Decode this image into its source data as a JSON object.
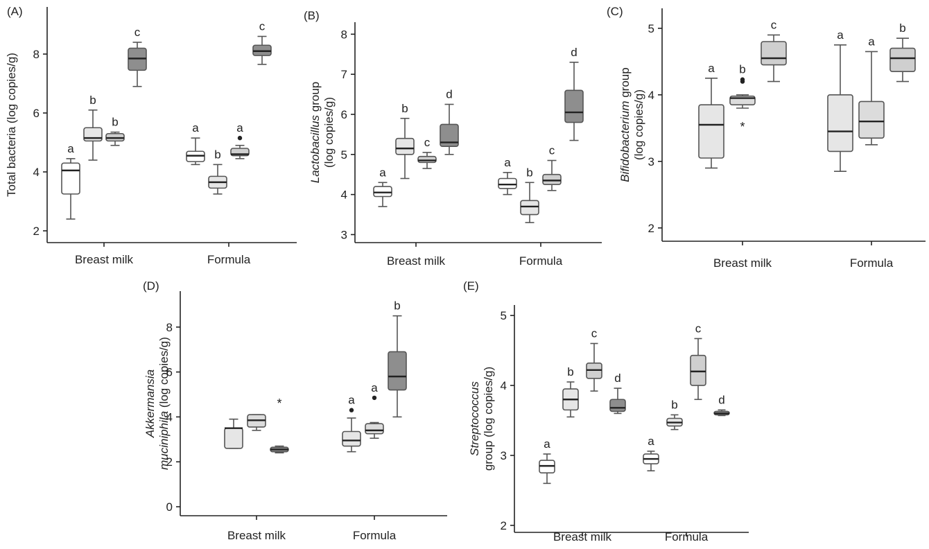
{
  "chart_data": [
    {
      "type": "box",
      "panel_label": "(A)",
      "ylabel": "Total bacteria  (log copies/g)",
      "ylabel_lines": [
        [
          {
            "text": "Total bacteria  (log copies/g)",
            "italic": false
          }
        ]
      ],
      "ylim": [
        1.6,
        9.6
      ],
      "yticks": [
        2,
        4,
        6,
        8
      ],
      "categories": [
        "Breast milk",
        "Formula"
      ],
      "box_colors": [
        "#ffffff",
        "#e6e6e6",
        "#cfcfcf",
        "#8e8e8e"
      ],
      "groups": [
        [
          {
            "min": 2.4,
            "q1": 3.25,
            "median": 4.05,
            "q3": 4.3,
            "max": 4.45,
            "letter": "a"
          },
          {
            "min": 4.4,
            "q1": 5.05,
            "median": 5.15,
            "q3": 5.5,
            "max": 6.1,
            "letter": "b"
          },
          {
            "min": 4.9,
            "q1": 5.05,
            "median": 5.15,
            "q3": 5.3,
            "max": 5.35,
            "letter": "b"
          },
          {
            "min": 6.9,
            "q1": 7.45,
            "median": 7.85,
            "q3": 8.2,
            "max": 8.4,
            "letter": "c"
          }
        ],
        [
          {
            "min": 4.25,
            "q1": 4.35,
            "median": 4.55,
            "q3": 4.7,
            "max": 5.15,
            "letter": "a"
          },
          {
            "min": 3.25,
            "q1": 3.45,
            "median": 3.65,
            "q3": 3.85,
            "max": 4.25,
            "letter": "b"
          },
          {
            "min": 4.45,
            "q1": 4.55,
            "median": 4.6,
            "q3": 4.8,
            "max": 4.9,
            "letter": "a",
            "outliers": [
              {
                "value": 5.15,
                "symbol": "dot"
              }
            ]
          },
          {
            "min": 7.65,
            "q1": 7.95,
            "median": 8.1,
            "q3": 8.3,
            "max": 8.6,
            "letter": "c"
          }
        ]
      ]
    },
    {
      "type": "box",
      "panel_label": "(B)",
      "ylabel": "Lactobacillus group (log copies/g)",
      "ylabel_lines": [
        [
          {
            "text": "Lactobacillus",
            "italic": true
          },
          {
            "text": " group",
            "italic": false
          }
        ],
        [
          {
            "text": "(log copies/g)",
            "italic": false
          }
        ]
      ],
      "ylim": [
        2.8,
        8.3
      ],
      "yticks": [
        3,
        4,
        5,
        6,
        7,
        8
      ],
      "categories": [
        "Breast milk",
        "Formula"
      ],
      "box_colors": [
        "#ffffff",
        "#e6e6e6",
        "#cfcfcf",
        "#8e8e8e"
      ],
      "groups": [
        [
          {
            "min": 3.7,
            "q1": 3.95,
            "median": 4.05,
            "q3": 4.2,
            "max": 4.3,
            "letter": "a"
          },
          {
            "min": 4.4,
            "q1": 5.0,
            "median": 5.15,
            "q3": 5.4,
            "max": 5.9,
            "letter": "b"
          },
          {
            "min": 4.65,
            "q1": 4.8,
            "median": 4.85,
            "q3": 4.95,
            "max": 5.05,
            "letter": "c"
          },
          {
            "min": 5.0,
            "q1": 5.2,
            "median": 5.3,
            "q3": 5.75,
            "max": 6.25,
            "letter": "d"
          }
        ],
        [
          {
            "min": 4.0,
            "q1": 4.15,
            "median": 4.25,
            "q3": 4.4,
            "max": 4.55,
            "letter": "a"
          },
          {
            "min": 3.3,
            "q1": 3.5,
            "median": 3.7,
            "q3": 3.85,
            "max": 4.3,
            "letter": "b"
          },
          {
            "min": 4.1,
            "q1": 4.25,
            "median": 4.35,
            "q3": 4.5,
            "max": 4.85,
            "letter": "c"
          },
          {
            "min": 5.35,
            "q1": 5.8,
            "median": 6.05,
            "q3": 6.6,
            "max": 7.3,
            "letter": "d"
          }
        ]
      ]
    },
    {
      "type": "box",
      "panel_label": "(C)",
      "ylabel": "Bifidobacterium group (log copies/g)",
      "ylabel_lines": [
        [
          {
            "text": "Bifidobacterium",
            "italic": true
          },
          {
            "text": " group",
            "italic": false
          }
        ],
        [
          {
            "text": "(log copies/g)",
            "italic": false
          }
        ]
      ],
      "ylim": [
        1.8,
        5.3
      ],
      "yticks": [
        2,
        3,
        4,
        5
      ],
      "categories": [
        "Breast milk",
        "Formula"
      ],
      "box_colors": [
        "#e6e6e6",
        "#dcdcdc",
        "#cfcfcf",
        "#8e8e8e"
      ],
      "groups": [
        [
          {
            "min": 2.9,
            "q1": 3.05,
            "median": 3.55,
            "q3": 3.85,
            "max": 4.25,
            "letter": "a"
          },
          {
            "min": 3.8,
            "q1": 3.85,
            "median": 3.95,
            "q3": 3.98,
            "max": 4.0,
            "letter": "b",
            "outliers": [
              {
                "value": 4.2,
                "symbol": "dot"
              },
              {
                "value": 4.23,
                "symbol": "dot"
              },
              {
                "value": 3.55,
                "symbol": "star"
              }
            ]
          },
          {
            "min": 4.2,
            "q1": 4.45,
            "median": 4.55,
            "q3": 4.8,
            "max": 4.9,
            "letter": "c"
          }
        ],
        [
          {
            "min": 2.85,
            "q1": 3.15,
            "median": 3.45,
            "q3": 4.0,
            "max": 4.75,
            "letter": "a"
          },
          {
            "min": 3.25,
            "q1": 3.35,
            "median": 3.6,
            "q3": 3.9,
            "max": 4.65,
            "letter": "a"
          },
          {
            "min": 4.2,
            "q1": 4.35,
            "median": 4.55,
            "q3": 4.7,
            "max": 4.85,
            "letter": "b"
          }
        ]
      ]
    },
    {
      "type": "box",
      "panel_label": "(D)",
      "ylabel": "Akkermansia muciniphila (log copies/g)",
      "ylabel_lines": [
        [
          {
            "text": "Akkermansia",
            "italic": true
          }
        ],
        [
          {
            "text": "muciniphila",
            "italic": true
          },
          {
            "text": " (log copies/g)",
            "italic": false
          }
        ]
      ],
      "ylim": [
        -0.4,
        9.6
      ],
      "yticks": [
        0,
        2,
        4,
        6,
        8
      ],
      "categories": [
        "Breast milk",
        "Formula"
      ],
      "box_colors": [
        "#e6e6e6",
        "#dcdcdc",
        "#8e8e8e"
      ],
      "groups": [
        [
          {
            "min": 2.6,
            "q1": 2.6,
            "median": 3.5,
            "q3": 3.5,
            "max": 3.9
          },
          {
            "min": 3.4,
            "q1": 3.55,
            "median": 3.85,
            "q3": 4.1,
            "max": 4.1
          },
          {
            "min": 2.4,
            "q1": 2.45,
            "median": 2.55,
            "q3": 2.65,
            "max": 2.7,
            "outliers": [
              {
                "value": 4.7,
                "symbol": "star"
              }
            ]
          }
        ],
        [
          {
            "min": 2.45,
            "q1": 2.7,
            "median": 2.95,
            "q3": 3.35,
            "max": 3.95,
            "letter": "a",
            "outliers": [
              {
                "value": 4.3,
                "symbol": "dot"
              }
            ]
          },
          {
            "min": 3.05,
            "q1": 3.25,
            "median": 3.4,
            "q3": 3.7,
            "max": 3.75,
            "letter": "a",
            "outliers": [
              {
                "value": 4.85,
                "symbol": "dot"
              }
            ]
          },
          {
            "min": 4.0,
            "q1": 5.2,
            "median": 5.8,
            "q3": 6.9,
            "max": 8.5,
            "letter": "b"
          }
        ]
      ]
    },
    {
      "type": "box",
      "panel_label": "(E)",
      "ylabel": "Streptococcus group  (log copies/g)",
      "ylabel_lines": [
        [
          {
            "text": "Streptococcus",
            "italic": true
          }
        ],
        [
          {
            "text": "group  (log copies/g)",
            "italic": false
          }
        ]
      ],
      "ylim": [
        1.9,
        5.15
      ],
      "yticks": [
        2,
        3,
        4,
        5
      ],
      "categories": [
        "Breast milk",
        "Formula"
      ],
      "box_colors": [
        "#ffffff",
        "#e6e6e6",
        "#cfcfcf",
        "#8e8e8e"
      ],
      "groups": [
        [
          {
            "min": 2.6,
            "q1": 2.75,
            "median": 2.85,
            "q3": 2.93,
            "max": 3.02,
            "letter": "a"
          },
          {
            "min": 3.55,
            "q1": 3.65,
            "median": 3.8,
            "q3": 3.95,
            "max": 4.05,
            "letter": "b"
          },
          {
            "min": 3.92,
            "q1": 4.1,
            "median": 4.22,
            "q3": 4.32,
            "max": 4.6,
            "letter": "c"
          },
          {
            "min": 3.6,
            "q1": 3.63,
            "median": 3.68,
            "q3": 3.8,
            "max": 3.96,
            "letter": "d"
          }
        ],
        [
          {
            "min": 2.78,
            "q1": 2.88,
            "median": 2.95,
            "q3": 3.02,
            "max": 3.06,
            "letter": "a"
          },
          {
            "min": 3.37,
            "q1": 3.42,
            "median": 3.47,
            "q3": 3.53,
            "max": 3.58,
            "letter": "b"
          },
          {
            "min": 3.8,
            "q1": 4.0,
            "median": 4.2,
            "q3": 4.43,
            "max": 4.67,
            "letter": "c"
          },
          {
            "min": 3.57,
            "q1": 3.58,
            "median": 3.6,
            "q3": 3.63,
            "max": 3.65,
            "letter": "d"
          }
        ]
      ]
    }
  ]
}
